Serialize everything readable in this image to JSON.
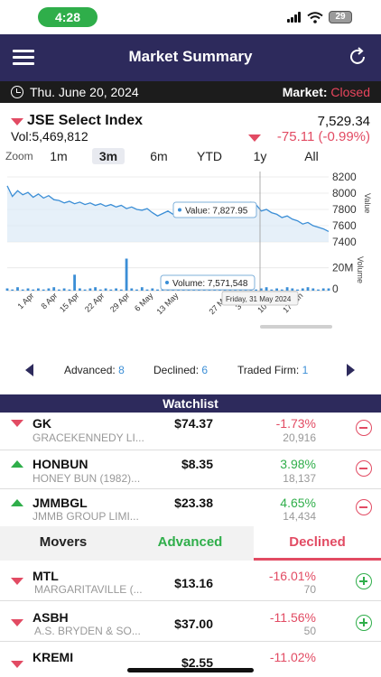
{
  "status_bar": {
    "time": "4:28",
    "battery": "29"
  },
  "header": {
    "title": "Market Summary"
  },
  "date_bar": {
    "date": "Thu. June 20, 2024",
    "market_label": "Market:",
    "market_status": "Closed"
  },
  "index": {
    "name": "JSE Select Index",
    "volume": "Vol:5,469,812",
    "value": "7,529.34",
    "change": "-75.11 (-0.99%)"
  },
  "zoom": {
    "label": "Zoom",
    "options": [
      "1m",
      "3m",
      "6m",
      "YTD",
      "1y",
      "All"
    ],
    "selected": "3m"
  },
  "chart_data": {
    "type": "line",
    "x_labels": [
      "1 Apr",
      "8 Apr",
      "15 Apr",
      "22 Apr",
      "29 Apr",
      "6 May",
      "13 May",
      "27 May",
      "3 Jun",
      "10 Jun",
      "17 Jun"
    ],
    "price_axis": [
      "8200",
      "8000",
      "7800",
      "7600",
      "7400"
    ],
    "price_axis_label": "Value",
    "volume_axis": [
      "20M",
      "0"
    ],
    "volume_axis_label": "Volume",
    "price_tooltip": "Value: 7,827.95",
    "volume_tooltip": "Volume: 7,571,548",
    "date_tooltip": "Friday, 31 May 2024",
    "price_series": [
      8090,
      7960,
      8030,
      7980,
      8010,
      7950,
      7990,
      7940,
      7970,
      7920,
      7910,
      7880,
      7900,
      7870,
      7890,
      7860,
      7880,
      7850,
      7870,
      7840,
      7860,
      7830,
      7850,
      7810,
      7830,
      7800,
      7790,
      7810,
      7760,
      7720,
      7750,
      7780,
      7740,
      7720,
      7760,
      7800,
      7780,
      7820,
      7840,
      7800,
      7790,
      7827.95,
      7850,
      7880,
      7860,
      7820,
      7870,
      7890,
      7860,
      7780,
      7800,
      7760,
      7740,
      7700,
      7720,
      7680,
      7660,
      7620,
      7640,
      7600,
      7580,
      7560,
      7529.34
    ],
    "volume_series": [
      2,
      1,
      3,
      1,
      2,
      1,
      2,
      1,
      2,
      3,
      1,
      2,
      1,
      14,
      2,
      1,
      2,
      3,
      1,
      2,
      1,
      2,
      1,
      28,
      2,
      1,
      3,
      1,
      2,
      1,
      2,
      1,
      2,
      1,
      3,
      2,
      1,
      2,
      1,
      2,
      4,
      7.57,
      2,
      1,
      2,
      3,
      1,
      2,
      1,
      2,
      3,
      1,
      2,
      1,
      3,
      2,
      1,
      2,
      3,
      2,
      1,
      2,
      2
    ]
  },
  "summary": {
    "advanced_label": "Advanced:",
    "advanced_count": "8",
    "declined_label": "Declined:",
    "declined_count": "6",
    "traded_label": "Traded Firm:",
    "traded_count": "1"
  },
  "watchlist": {
    "title": "Watchlist",
    "rows": [
      {
        "symbol": "GK",
        "name": "GRACEKENNEDY LI...",
        "price": "$74.37",
        "pct": "-1.73%",
        "volume": "20,916",
        "direction": "down"
      },
      {
        "symbol": "HONBUN",
        "name": "HONEY BUN (1982)...",
        "price": "$8.35",
        "pct": "3.98%",
        "volume": "18,137",
        "direction": "up"
      },
      {
        "symbol": "JMMBGL",
        "name": "JMMB GROUP LIMI...",
        "price": "$23.38",
        "pct": "4.65%",
        "volume": "14,434",
        "direction": "up"
      }
    ]
  },
  "movers": {
    "label": "Movers",
    "tab_advanced": "Advanced",
    "tab_declined": "Declined",
    "rows": [
      {
        "symbol": "MTL",
        "name": "MARGARITAVILLE (...",
        "price": "$13.16",
        "pct": "-16.01%",
        "volume": "70",
        "direction": "down"
      },
      {
        "symbol": "ASBH",
        "name": "A.S. BRYDEN & SO...",
        "price": "$37.00",
        "pct": "-11.56%",
        "volume": "50",
        "direction": "down"
      },
      {
        "symbol": "KREMI",
        "name": "",
        "price": "$2.55",
        "pct": "-11.02%",
        "volume": "",
        "direction": "down"
      }
    ]
  },
  "colors": {
    "header": "#2d2a5c",
    "positive": "#2fae4a",
    "negative": "#e24b63",
    "link": "#3b8ed6"
  }
}
